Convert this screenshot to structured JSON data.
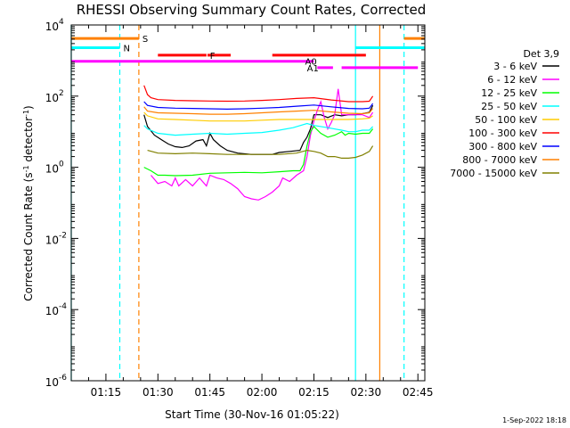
{
  "chart_data": {
    "type": "line",
    "title": "RHESSI Observing Summary Count Rates, Corrected",
    "xlabel": "Start Time (30-Nov-16 01:05:22)",
    "ylabel": "Corrected Count Rate (s",
    "ylabel_exp": "-1",
    "ylabel_suffix": " detector",
    "ylabel_close": ")",
    "x_unit": "minutes from 01:05:22",
    "xlim": [
      0,
      102
    ],
    "ylim_log10": [
      -6,
      4
    ],
    "y_scale": "log",
    "x_ticks": [
      {
        "v": 10,
        "label": "01:15"
      },
      {
        "v": 25,
        "label": "01:30"
      },
      {
        "v": 40,
        "label": "01:45"
      },
      {
        "v": 55,
        "label": "02:00"
      },
      {
        "v": 70,
        "label": "02:15"
      },
      {
        "v": 85,
        "label": "02:30"
      },
      {
        "v": 100,
        "label": "02:45"
      }
    ],
    "y_ticks": [
      {
        "e": 4,
        "base": "10",
        "exp": "4"
      },
      {
        "e": 2,
        "base": "10",
        "exp": "2"
      },
      {
        "e": 0,
        "base": "10",
        "exp": "0"
      },
      {
        "e": -2,
        "base": "10",
        "exp": "-2"
      },
      {
        "e": -4,
        "base": "10",
        "exp": "-4"
      },
      {
        "e": -6,
        "base": "10",
        "exp": "-6"
      }
    ],
    "legend_title": "Det 3,9",
    "legend_position": "right",
    "series": [
      {
        "name": "3 - 6 keV",
        "color": "#000000",
        "points": [
          [
            21,
            30
          ],
          [
            22,
            14
          ],
          [
            24,
            8
          ],
          [
            26,
            6
          ],
          [
            28,
            4.5
          ],
          [
            30,
            3.8
          ],
          [
            32,
            3.6
          ],
          [
            34,
            4
          ],
          [
            36,
            5.5
          ],
          [
            38,
            6
          ],
          [
            39,
            4
          ],
          [
            40,
            9
          ],
          [
            41,
            6
          ],
          [
            43,
            4
          ],
          [
            45,
            3
          ],
          [
            48,
            2.5
          ],
          [
            52,
            2.3
          ],
          [
            55,
            2.3
          ],
          [
            58,
            2.3
          ],
          [
            60,
            2.6
          ],
          [
            63,
            2.8
          ],
          [
            66,
            3
          ],
          [
            67,
            5
          ],
          [
            68,
            7
          ],
          [
            69,
            12
          ],
          [
            70,
            30
          ],
          [
            72,
            30
          ],
          [
            74,
            25
          ],
          [
            76,
            30
          ],
          [
            78,
            28
          ],
          [
            80,
            30
          ],
          [
            82,
            30
          ],
          [
            84,
            32
          ],
          [
            86,
            35
          ],
          [
            87,
            55
          ]
        ]
      },
      {
        "name": "6 - 12 keV",
        "color": "#ff00ff",
        "points": [
          [
            23,
            0.6
          ],
          [
            25,
            0.35
          ],
          [
            27,
            0.4
          ],
          [
            29,
            0.3
          ],
          [
            30,
            0.5
          ],
          [
            31,
            0.3
          ],
          [
            33,
            0.45
          ],
          [
            35,
            0.3
          ],
          [
            37,
            0.5
          ],
          [
            39,
            0.3
          ],
          [
            40,
            0.6
          ],
          [
            42,
            0.5
          ],
          [
            44,
            0.45
          ],
          [
            46,
            0.35
          ],
          [
            48,
            0.25
          ],
          [
            50,
            0.15
          ],
          [
            52,
            0.13
          ],
          [
            54,
            0.12
          ],
          [
            56,
            0.15
          ],
          [
            58,
            0.2
          ],
          [
            60,
            0.3
          ],
          [
            61,
            0.5
          ],
          [
            63,
            0.4
          ],
          [
            65,
            0.6
          ],
          [
            67,
            0.8
          ],
          [
            68,
            2
          ],
          [
            69,
            8
          ],
          [
            70,
            20
          ],
          [
            71,
            40
          ],
          [
            72,
            70
          ],
          [
            73,
            25
          ],
          [
            74,
            12
          ],
          [
            75,
            18
          ],
          [
            76,
            30
          ],
          [
            77,
            160
          ],
          [
            78,
            30
          ],
          [
            80,
            30
          ],
          [
            82,
            30
          ],
          [
            84,
            30
          ],
          [
            86,
            25
          ],
          [
            87,
            35
          ]
        ]
      },
      {
        "name": "12 - 25 keV",
        "color": "#00ff00",
        "points": [
          [
            21,
            1
          ],
          [
            23,
            0.8
          ],
          [
            25,
            0.6
          ],
          [
            27,
            0.6
          ],
          [
            30,
            0.58
          ],
          [
            35,
            0.6
          ],
          [
            40,
            0.68
          ],
          [
            45,
            0.7
          ],
          [
            50,
            0.72
          ],
          [
            55,
            0.7
          ],
          [
            60,
            0.75
          ],
          [
            64,
            0.8
          ],
          [
            66,
            0.8
          ],
          [
            67,
            1.2
          ],
          [
            68,
            4
          ],
          [
            69,
            10
          ],
          [
            70,
            14
          ],
          [
            72,
            9
          ],
          [
            74,
            7
          ],
          [
            76,
            8
          ],
          [
            78,
            10
          ],
          [
            79,
            8
          ],
          [
            80,
            9
          ],
          [
            82,
            8.5
          ],
          [
            84,
            9
          ],
          [
            86,
            9
          ],
          [
            87,
            12
          ]
        ]
      },
      {
        "name": "25 - 50 keV",
        "color": "#00ffff",
        "points": [
          [
            21,
            15
          ],
          [
            22,
            12
          ],
          [
            25,
            9
          ],
          [
            30,
            8
          ],
          [
            35,
            8.5
          ],
          [
            40,
            9
          ],
          [
            45,
            8.5
          ],
          [
            50,
            9
          ],
          [
            55,
            9.5
          ],
          [
            60,
            11
          ],
          [
            64,
            13
          ],
          [
            68,
            17
          ],
          [
            70,
            15
          ],
          [
            74,
            13
          ],
          [
            78,
            11
          ],
          [
            80,
            10
          ],
          [
            82,
            10
          ],
          [
            84,
            11
          ],
          [
            86,
            11
          ],
          [
            87,
            14
          ]
        ]
      },
      {
        "name": "50 - 100 keV",
        "color": "#ffcc00",
        "points": [
          [
            21,
            35
          ],
          [
            22,
            28
          ],
          [
            25,
            23
          ],
          [
            30,
            22
          ],
          [
            35,
            21
          ],
          [
            40,
            20
          ],
          [
            45,
            20
          ],
          [
            50,
            20
          ],
          [
            55,
            21
          ],
          [
            60,
            22
          ],
          [
            65,
            22
          ],
          [
            70,
            22
          ],
          [
            75,
            22
          ],
          [
            80,
            22
          ],
          [
            84,
            23
          ],
          [
            86,
            24
          ],
          [
            87,
            28
          ]
        ]
      },
      {
        "name": "100 - 300 keV",
        "color": "#ff0000",
        "points": [
          [
            21,
            200
          ],
          [
            22,
            110
          ],
          [
            23,
            90
          ],
          [
            25,
            80
          ],
          [
            30,
            76
          ],
          [
            35,
            74
          ],
          [
            40,
            73
          ],
          [
            45,
            72
          ],
          [
            50,
            73
          ],
          [
            55,
            76
          ],
          [
            60,
            80
          ],
          [
            65,
            86
          ],
          [
            70,
            90
          ],
          [
            75,
            78
          ],
          [
            80,
            70
          ],
          [
            84,
            70
          ],
          [
            86,
            72
          ],
          [
            87,
            100
          ]
        ]
      },
      {
        "name": "300 - 800 keV",
        "color": "#0000ff",
        "points": [
          [
            21,
            70
          ],
          [
            22,
            55
          ],
          [
            25,
            48
          ],
          [
            30,
            46
          ],
          [
            35,
            45
          ],
          [
            40,
            44
          ],
          [
            45,
            43
          ],
          [
            50,
            44
          ],
          [
            55,
            46
          ],
          [
            60,
            48
          ],
          [
            65,
            52
          ],
          [
            70,
            56
          ],
          [
            75,
            50
          ],
          [
            80,
            45
          ],
          [
            84,
            44
          ],
          [
            86,
            46
          ],
          [
            87,
            62
          ]
        ]
      },
      {
        "name": "800 - 7000 keV",
        "color": "#ff8000",
        "points": [
          [
            21,
            50
          ],
          [
            22,
            38
          ],
          [
            25,
            34
          ],
          [
            30,
            33
          ],
          [
            35,
            32
          ],
          [
            40,
            31
          ],
          [
            45,
            31
          ],
          [
            50,
            32
          ],
          [
            55,
            34
          ],
          [
            60,
            36
          ],
          [
            65,
            38
          ],
          [
            70,
            40
          ],
          [
            75,
            36
          ],
          [
            80,
            33
          ],
          [
            84,
            32
          ],
          [
            86,
            34
          ],
          [
            87,
            45
          ]
        ]
      },
      {
        "name": "7000 - 15000 keV",
        "color": "#808000",
        "points": [
          [
            22,
            3
          ],
          [
            25,
            2.5
          ],
          [
            30,
            2.4
          ],
          [
            35,
            2.5
          ],
          [
            40,
            2.4
          ],
          [
            45,
            2.3
          ],
          [
            50,
            2.3
          ],
          [
            55,
            2.3
          ],
          [
            60,
            2.3
          ],
          [
            65,
            2.5
          ],
          [
            68,
            3
          ],
          [
            70,
            2.8
          ],
          [
            72,
            2.5
          ],
          [
            74,
            2
          ],
          [
            76,
            2
          ],
          [
            78,
            1.8
          ],
          [
            80,
            1.8
          ],
          [
            82,
            1.9
          ],
          [
            84,
            2.2
          ],
          [
            86,
            2.8
          ],
          [
            87,
            4
          ]
        ]
      }
    ],
    "vlines": [
      {
        "x": 0,
        "color": "#00ffff",
        "dash": false
      },
      {
        "x": 14,
        "color": "#00ffff",
        "dash": true
      },
      {
        "x": 19.5,
        "color": "#ff8000",
        "dash": true
      },
      {
        "x": 82,
        "color": "#00ffff",
        "dash": false
      },
      {
        "x": 89,
        "color": "#ff8000",
        "dash": false
      },
      {
        "x": 96,
        "color": "#00ffff",
        "dash": true
      }
    ],
    "flag_bars": [
      {
        "label": "S",
        "color": "#ff8000",
        "y_log10": 3.62,
        "segments": [
          [
            0,
            19.5
          ],
          [
            96,
            102
          ]
        ]
      },
      {
        "label": "N",
        "color": "#00ffff",
        "y_log10": 3.36,
        "segments": [
          [
            0,
            14
          ],
          [
            82,
            102
          ]
        ]
      },
      {
        "label": "F",
        "color": "#ff0000",
        "y_log10": 3.15,
        "segments": [
          [
            25,
            39
          ],
          [
            39.3,
            46
          ],
          [
            58,
            85
          ]
        ]
      },
      {
        "label": "A0",
        "color": "#ff00ff",
        "y_log10": 2.98,
        "segments": [
          [
            0,
            70
          ]
        ]
      },
      {
        "label": "A1",
        "color": "#ff00ff",
        "y_log10": 2.8,
        "segments": [
          [
            71,
            75.5
          ],
          [
            78,
            100
          ]
        ]
      }
    ],
    "footer_date": "1-Sep-2022 18:18"
  }
}
